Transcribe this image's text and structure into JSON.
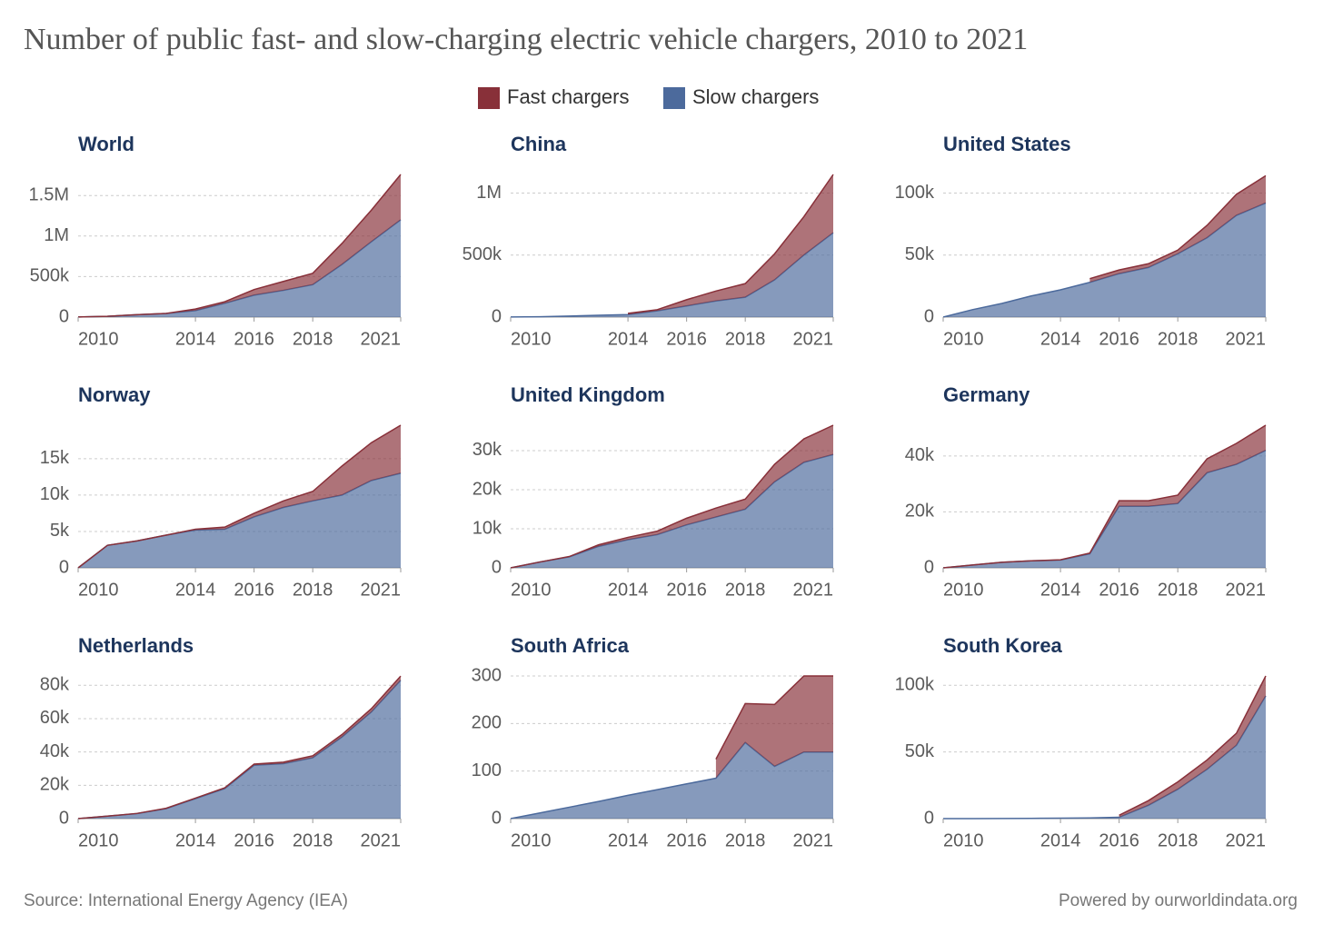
{
  "title": "Number of public fast- and slow-charging electric vehicle chargers, 2010 to 2021",
  "source": "Source: International Energy Agency (IEA)",
  "credit": "Powered by ourworldindata.org",
  "chart_data": [
    {
      "type": "area",
      "title": "World",
      "x": [
        2010,
        2011,
        2012,
        2013,
        2014,
        2015,
        2016,
        2017,
        2018,
        2019,
        2020,
        2021
      ],
      "xlim": [
        2010,
        2021
      ],
      "xticks": [
        2010,
        2014,
        2016,
        2018,
        2021
      ],
      "ylim": [
        0,
        1760000
      ],
      "yticks": [
        0,
        {
          "value": 500000,
          "label": "500k"
        },
        {
          "value": 1000000,
          "label": "1M"
        },
        {
          "value": 1500000,
          "label": "1.5M"
        }
      ],
      "grid": true,
      "series": [
        {
          "name": "Fast chargers",
          "color": "#883039",
          "values": [
            0,
            0,
            0,
            0,
            20000,
            20000,
            70000,
            110000,
            140000,
            260000,
            390000,
            560000
          ]
        },
        {
          "name": "Slow chargers",
          "color": "#4c6a9c",
          "values": [
            2000,
            10000,
            30000,
            45000,
            80000,
            170000,
            270000,
            330000,
            400000,
            650000,
            930000,
            1200000
          ]
        }
      ]
    },
    {
      "type": "area",
      "title": "China",
      "x": [
        2010,
        2011,
        2012,
        2013,
        2014,
        2015,
        2016,
        2017,
        2018,
        2019,
        2020,
        2021
      ],
      "xlim": [
        2010,
        2021
      ],
      "xticks": [
        2010,
        2014,
        2016,
        2018,
        2021
      ],
      "ylim": [
        0,
        1150000
      ],
      "yticks": [
        0,
        {
          "value": 500000,
          "label": "500k"
        },
        {
          "value": 1000000,
          "label": "1M"
        }
      ],
      "grid": true,
      "series": [
        {
          "name": "Fast chargers",
          "color": "#883039",
          "values": [
            null,
            null,
            null,
            null,
            10000,
            10000,
            50000,
            80000,
            110000,
            210000,
            310000,
            470000
          ]
        },
        {
          "name": "Slow chargers",
          "color": "#4c6a9c",
          "values": [
            1000,
            3000,
            8000,
            15000,
            20000,
            50000,
            90000,
            130000,
            160000,
            300000,
            500000,
            680000
          ]
        }
      ]
    },
    {
      "type": "area",
      "title": "United States",
      "x": [
        2010,
        2011,
        2012,
        2013,
        2014,
        2015,
        2016,
        2017,
        2018,
        2019,
        2020,
        2021
      ],
      "xlim": [
        2010,
        2021
      ],
      "xticks": [
        2010,
        2014,
        2016,
        2018,
        2021
      ],
      "ylim": [
        0,
        115000
      ],
      "yticks": [
        0,
        {
          "value": 50000,
          "label": "50k"
        },
        {
          "value": 100000,
          "label": "100k"
        }
      ],
      "grid": true,
      "series": [
        {
          "name": "Fast chargers",
          "color": "#883039",
          "values": [
            null,
            null,
            null,
            null,
            null,
            3000,
            3000,
            3000,
            3000,
            10000,
            17000,
            22000
          ]
        },
        {
          "name": "Slow chargers",
          "color": "#4c6a9c",
          "values": [
            0,
            6000,
            11000,
            17000,
            22000,
            28000,
            35000,
            40000,
            51000,
            64000,
            82000,
            92000
          ]
        }
      ]
    },
    {
      "type": "area",
      "title": "Norway",
      "x": [
        2010,
        2011,
        2012,
        2013,
        2014,
        2015,
        2016,
        2017,
        2018,
        2019,
        2020,
        2021
      ],
      "xlim": [
        2010,
        2021
      ],
      "xticks": [
        2010,
        2014,
        2016,
        2018,
        2021
      ],
      "ylim": [
        0,
        19600
      ],
      "yticks": [
        0,
        {
          "value": 5000,
          "label": "5k"
        },
        {
          "value": 10000,
          "label": "10k"
        },
        {
          "value": 15000,
          "label": "15k"
        }
      ],
      "grid": true,
      "series": [
        {
          "name": "Fast chargers",
          "color": "#883039",
          "values": [
            0,
            0,
            0,
            0,
            100,
            300,
            500,
            900,
            1300,
            4000,
            5200,
            6600
          ]
        },
        {
          "name": "Slow chargers",
          "color": "#4c6a9c",
          "values": [
            0,
            3100,
            3700,
            4500,
            5200,
            5300,
            7000,
            8300,
            9200,
            10000,
            12000,
            13000
          ]
        }
      ]
    },
    {
      "type": "area",
      "title": "United Kingdom",
      "x": [
        2010,
        2011,
        2012,
        2013,
        2014,
        2015,
        2016,
        2017,
        2018,
        2019,
        2020,
        2021
      ],
      "xlim": [
        2010,
        2021
      ],
      "xticks": [
        2010,
        2014,
        2016,
        2018,
        2021
      ],
      "ylim": [
        0,
        36500
      ],
      "yticks": [
        0,
        {
          "value": 10000,
          "label": "10k"
        },
        {
          "value": 20000,
          "label": "20k"
        },
        {
          "value": 30000,
          "label": "30k"
        }
      ],
      "grid": true,
      "series": [
        {
          "name": "Fast chargers",
          "color": "#883039",
          "values": [
            0,
            0,
            100,
            400,
            600,
            900,
            1700,
            2300,
            2600,
            4500,
            6000,
            7500
          ]
        },
        {
          "name": "Slow chargers",
          "color": "#4c6a9c",
          "values": [
            0,
            1500,
            2800,
            5500,
            7200,
            8500,
            11000,
            13000,
            15000,
            22000,
            27000,
            29000
          ]
        }
      ]
    },
    {
      "type": "area",
      "title": "Germany",
      "x": [
        2010,
        2011,
        2012,
        2013,
        2014,
        2015,
        2016,
        2017,
        2018,
        2019,
        2020,
        2021
      ],
      "xlim": [
        2010,
        2021
      ],
      "xticks": [
        2010,
        2014,
        2016,
        2018,
        2021
      ],
      "ylim": [
        0,
        51000
      ],
      "yticks": [
        0,
        {
          "value": 20000,
          "label": "20k"
        },
        {
          "value": 40000,
          "label": "40k"
        }
      ],
      "grid": true,
      "series": [
        {
          "name": "Fast chargers",
          "color": "#883039",
          "values": [
            0,
            0,
            0,
            0,
            100,
            300,
            2000,
            2000,
            3000,
            5000,
            7500,
            9000
          ]
        },
        {
          "name": "Slow chargers",
          "color": "#4c6a9c",
          "values": [
            0,
            1000,
            2000,
            2500,
            2800,
            5000,
            22000,
            22000,
            23000,
            34000,
            37000,
            42000
          ]
        }
      ]
    },
    {
      "type": "area",
      "title": "Netherlands",
      "x": [
        2010,
        2011,
        2012,
        2013,
        2014,
        2015,
        2016,
        2017,
        2018,
        2019,
        2020,
        2021
      ],
      "xlim": [
        2010,
        2021
      ],
      "xticks": [
        2010,
        2014,
        2016,
        2018,
        2021
      ],
      "ylim": [
        0,
        85600
      ],
      "yticks": [
        0,
        {
          "value": 20000,
          "label": "20k"
        },
        {
          "value": 40000,
          "label": "40k"
        },
        {
          "value": 60000,
          "label": "60k"
        },
        {
          "value": 80000,
          "label": "80k"
        }
      ],
      "grid": true,
      "series": [
        {
          "name": "Fast chargers",
          "color": "#883039",
          "values": [
            0,
            0,
            100,
            200,
            300,
            500,
            700,
            900,
            1200,
            1500,
            2000,
            2500
          ]
        },
        {
          "name": "Slow chargers",
          "color": "#4c6a9c",
          "values": [
            0,
            1500,
            3000,
            6000,
            12000,
            18000,
            32000,
            33000,
            36500,
            49000,
            64000,
            83000
          ]
        }
      ]
    },
    {
      "type": "area",
      "title": "South Africa",
      "x": [
        2010,
        2011,
        2012,
        2013,
        2014,
        2015,
        2016,
        2017,
        2018,
        2019,
        2020,
        2021
      ],
      "xlim": [
        2010,
        2021
      ],
      "xticks": [
        2010,
        2014,
        2016,
        2018,
        2021
      ],
      "ylim": [
        0,
        300
      ],
      "yticks": [
        0,
        100,
        200,
        300
      ],
      "grid": true,
      "series": [
        {
          "name": "Fast chargers",
          "color": "#883039",
          "values": [
            null,
            null,
            null,
            null,
            null,
            null,
            null,
            40,
            82,
            130,
            160,
            160
          ]
        },
        {
          "name": "Slow chargers",
          "color": "#4c6a9c",
          "values": [
            0,
            12,
            24,
            36,
            49,
            61,
            73,
            85,
            160,
            110,
            140,
            140
          ]
        }
      ]
    },
    {
      "type": "area",
      "title": "South Korea",
      "x": [
        2010,
        2011,
        2012,
        2013,
        2014,
        2015,
        2016,
        2017,
        2018,
        2019,
        2020,
        2021
      ],
      "xlim": [
        2010,
        2021
      ],
      "xticks": [
        2010,
        2014,
        2016,
        2018,
        2021
      ],
      "ylim": [
        0,
        107000
      ],
      "yticks": [
        0,
        {
          "value": 50000,
          "label": "50k"
        },
        {
          "value": 100000,
          "label": "100k"
        }
      ],
      "grid": true,
      "series": [
        {
          "name": "Fast chargers",
          "color": "#883039",
          "values": [
            null,
            null,
            null,
            null,
            null,
            null,
            1500,
            3500,
            5500,
            7000,
            9000,
            15000
          ]
        },
        {
          "name": "Slow chargers",
          "color": "#4c6a9c",
          "values": [
            0,
            0,
            100,
            200,
            300,
            500,
            1000,
            10000,
            22000,
            37000,
            55000,
            92000
          ]
        }
      ]
    }
  ]
}
